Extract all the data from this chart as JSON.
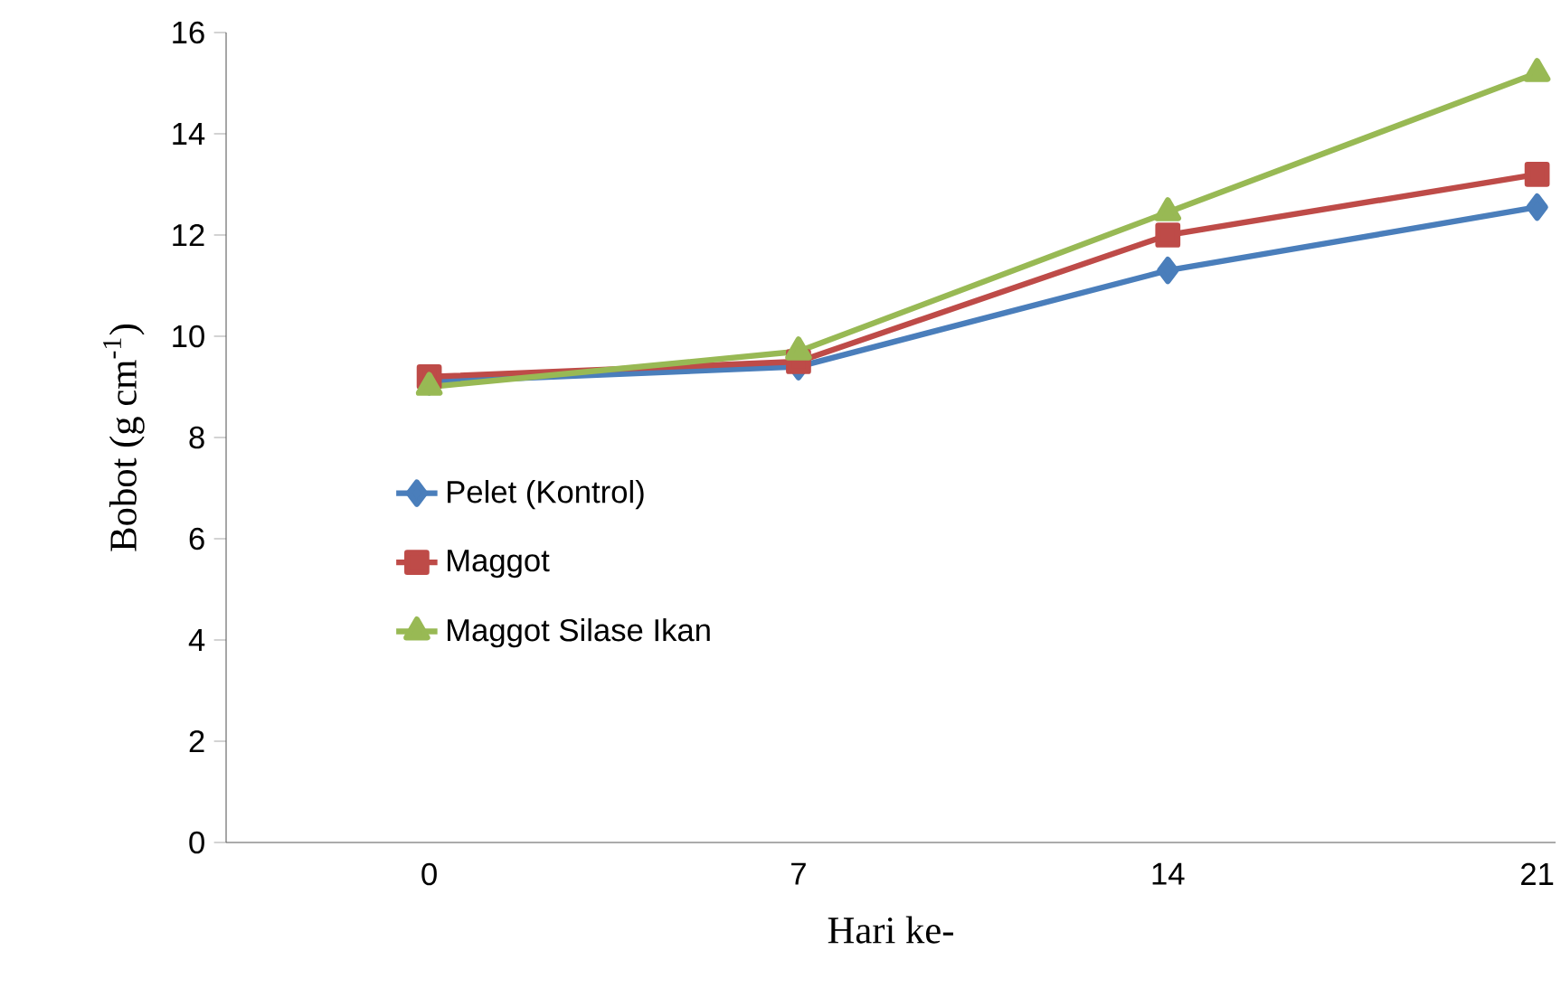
{
  "chart_data": {
    "type": "line",
    "xlabel": "Hari ke-",
    "ylabel": "Bobot (g cm$^{-1}$)",
    "categories": [
      "0",
      "7",
      "14",
      "21"
    ],
    "ylim": [
      0,
      16
    ],
    "yticks": [
      0,
      2,
      4,
      6,
      8,
      10,
      12,
      14,
      16
    ],
    "legend": "left",
    "line_style": "solid",
    "series": [
      {
        "name": "Pelet (Kontrol)",
        "color": "#4a7ebb",
        "marker": "diamond",
        "values": [
          9.1,
          9.4,
          11.3,
          12.55
        ]
      },
      {
        "name": "Maggot",
        "color": "#be4b48",
        "marker": "square",
        "values": [
          9.2,
          9.5,
          12.0,
          13.2
        ]
      },
      {
        "name": "Maggot Silase Ikan",
        "color": "#98b954",
        "marker": "triangle",
        "values": [
          9.0,
          9.7,
          12.45,
          15.2
        ]
      }
    ]
  }
}
